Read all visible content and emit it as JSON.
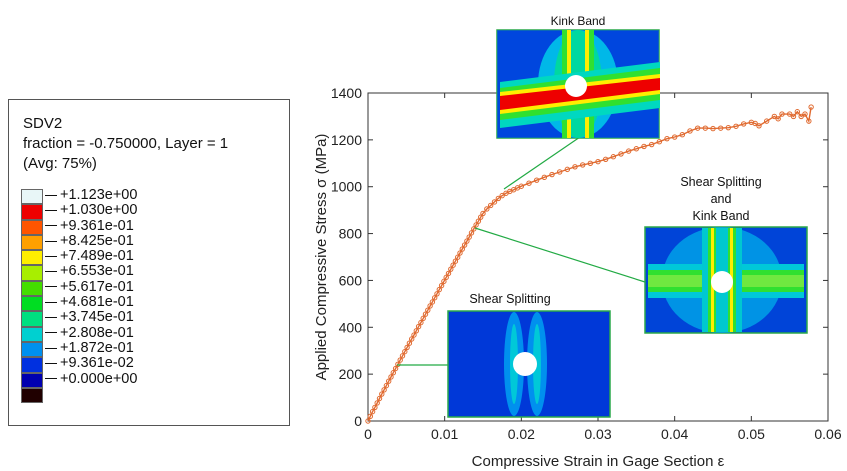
{
  "legend": {
    "title": "SDV2",
    "line2": "fraction = -0.750000, Layer = 1",
    "line3": "(Avg: 75%)",
    "entries": [
      {
        "label": "+1.123e+00",
        "color": "#e8f6f7"
      },
      {
        "label": "+1.030e+00",
        "color": "#ee0000"
      },
      {
        "label": "+9.361e-01",
        "color": "#ff5500"
      },
      {
        "label": "+8.425e-01",
        "color": "#ffa000"
      },
      {
        "label": "+7.489e-01",
        "color": "#ffee00"
      },
      {
        "label": "+6.553e-01",
        "color": "#a8ee00"
      },
      {
        "label": "+5.617e-01",
        "color": "#44dd00"
      },
      {
        "label": "+4.681e-01",
        "color": "#00dd22"
      },
      {
        "label": "+3.745e-01",
        "color": "#00e080"
      },
      {
        "label": "+2.808e-01",
        "color": "#00d0d0"
      },
      {
        "label": "+1.872e-01",
        "color": "#0090ee"
      },
      {
        "label": "+9.361e-02",
        "color": "#0030e0"
      },
      {
        "label": "+0.000e+00",
        "color": "#0000b0"
      },
      {
        "label": "",
        "color": "#200000"
      }
    ]
  },
  "insets": {
    "kink_band": "Kink Band",
    "shear_kink_1": "Shear Splitting",
    "shear_kink_2": "and",
    "shear_kink_3": "Kink Band",
    "shear_splitting": "Shear Splitting"
  },
  "chart_data": {
    "type": "line",
    "xlabel": "Compressive Strain in Gage Section  ε",
    "ylabel": "Applied Compressive Stress  σ (MPa)",
    "xlim": [
      0,
      0.06
    ],
    "ylim": [
      0,
      1400
    ],
    "xticks": [
      "0",
      "0.01",
      "0.02",
      "0.03",
      "0.04",
      "0.05",
      "0.06"
    ],
    "yticks": [
      "0",
      "200",
      "400",
      "600",
      "800",
      "1000",
      "1200",
      "1400"
    ],
    "line_color": "#e06a30",
    "series": [
      {
        "x": [
          0,
          0.0003,
          0.0006,
          0.0009,
          0.0012,
          0.0015,
          0.0018,
          0.0021,
          0.0024,
          0.0027,
          0.003,
          0.0033,
          0.0036,
          0.0039,
          0.0042,
          0.0045,
          0.0048,
          0.0051,
          0.0054,
          0.0057,
          0.006,
          0.0063,
          0.0066,
          0.0069,
          0.0072,
          0.0075,
          0.0078,
          0.0081,
          0.0084,
          0.0087,
          0.009,
          0.0093,
          0.0096,
          0.0099,
          0.0102,
          0.0105,
          0.0108,
          0.0111,
          0.0114,
          0.0117,
          0.012,
          0.0123,
          0.0126,
          0.0129,
          0.0132,
          0.0135,
          0.0138,
          0.0141,
          0.0144,
          0.0147,
          0.015,
          0.0155,
          0.016,
          0.0165,
          0.017,
          0.0175,
          0.018,
          0.0185,
          0.019,
          0.0195,
          0.02,
          0.021,
          0.022,
          0.023,
          0.024,
          0.025,
          0.026,
          0.027,
          0.028,
          0.029,
          0.03,
          0.031,
          0.032,
          0.033,
          0.034,
          0.035,
          0.036,
          0.037,
          0.038,
          0.039,
          0.04,
          0.041,
          0.042,
          0.043,
          0.044,
          0.045,
          0.046,
          0.047,
          0.048,
          0.049,
          0.05,
          0.0505,
          0.051,
          0.052,
          0.053,
          0.0535,
          0.054,
          0.055,
          0.0555,
          0.056,
          0.0565,
          0.057,
          0.0575,
          0.0578
        ],
        "y": [
          0,
          20,
          40,
          58,
          77,
          96,
          115,
          133,
          151,
          170,
          188,
          206,
          224,
          242,
          260,
          278,
          296,
          314,
          332,
          350,
          367,
          385,
          403,
          420,
          438,
          456,
          473,
          491,
          508,
          526,
          543,
          561,
          578,
          596,
          613,
          630,
          648,
          665,
          682,
          699,
          717,
          734,
          751,
          768,
          785,
          803,
          820,
          837,
          853,
          870,
          886,
          905,
          920,
          935,
          950,
          962,
          972,
          980,
          987,
          995,
          1002,
          1015,
          1028,
          1040,
          1052,
          1063,
          1074,
          1085,
          1093,
          1100,
          1107,
          1117,
          1128,
          1140,
          1152,
          1162,
          1172,
          1180,
          1192,
          1205,
          1212,
          1222,
          1238,
          1250,
          1250,
          1248,
          1250,
          1252,
          1258,
          1268,
          1275,
          1270,
          1260,
          1280,
          1300,
          1290,
          1310,
          1310,
          1300,
          1320,
          1300,
          1310,
          1280,
          1340
        ]
      }
    ]
  }
}
